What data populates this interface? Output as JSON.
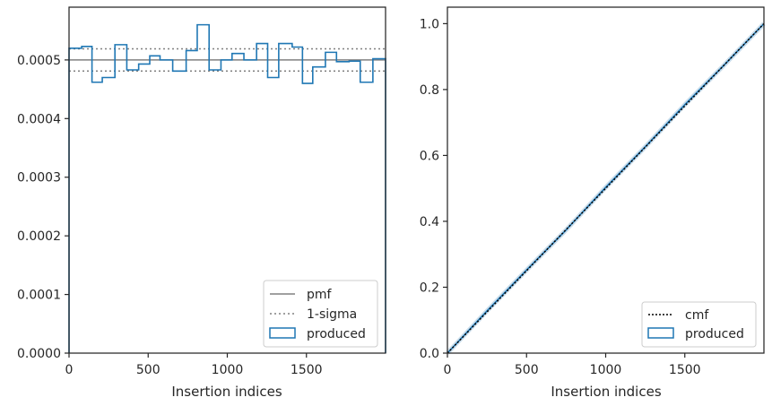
{
  "chart_data": [
    {
      "type": "histogram",
      "title": "",
      "xlabel": "Insertion indices",
      "ylabel": "",
      "xlim": [
        0,
        2000
      ],
      "ylim": [
        0,
        0.00059
      ],
      "xticks": [
        "0",
        "500",
        "1000",
        "1500"
      ],
      "yticks": [
        "0.0000",
        "0.0001",
        "0.0002",
        "0.0003",
        "0.0004",
        "0.0005"
      ],
      "grid": false,
      "legend_position": "lower right",
      "colors": {
        "produced": "#1f77b4",
        "pmf": "#808080",
        "sigma": "#808080"
      },
      "bin_edges": [
        0,
        80,
        145,
        210,
        290,
        365,
        440,
        510,
        575,
        655,
        740,
        810,
        885,
        960,
        1030,
        1105,
        1185,
        1255,
        1325,
        1410,
        1475,
        1540,
        1620,
        1690,
        1770,
        1840,
        1920,
        2000
      ],
      "produced": [
        0.00052,
        0.000523,
        0.000462,
        0.00047,
        0.000526,
        0.000483,
        0.000493,
        0.000507,
        0.0005,
        0.000481,
        0.000516,
        0.00056,
        0.000483,
        0.0005,
        0.000511,
        0.0005,
        0.000528,
        0.00047,
        0.000528,
        0.000522,
        0.00046,
        0.000488,
        0.000513,
        0.000497,
        0.000498,
        0.000462,
        0.000502
      ],
      "pmf": 0.0005,
      "sigma_band": [
        0.000481,
        0.000519
      ],
      "legend": [
        "pmf",
        "1-sigma",
        "produced"
      ]
    },
    {
      "type": "line",
      "title": "",
      "xlabel": "Insertion indices",
      "ylabel": "",
      "xlim": [
        0,
        2000
      ],
      "ylim": [
        0,
        1.05
      ],
      "xticks": [
        "0",
        "500",
        "1000",
        "1500"
      ],
      "yticks": [
        "0.0",
        "0.2",
        "0.4",
        "0.6",
        "0.8",
        "1.0"
      ],
      "grid": false,
      "legend_position": "lower right",
      "colors": {
        "cmf": "#000000",
        "produced": "#1f77b4"
      },
      "series": [
        {
          "name": "cmf",
          "x": [
            0,
            2000
          ],
          "y": [
            0,
            1
          ]
        },
        {
          "name": "produced",
          "x": [
            0,
            250,
            500,
            750,
            1000,
            1250,
            1500,
            1750,
            2000
          ],
          "y": [
            0,
            0.128,
            0.252,
            0.374,
            0.503,
            0.626,
            0.754,
            0.875,
            1
          ]
        }
      ],
      "legend": [
        "cmf",
        "produced"
      ]
    }
  ]
}
